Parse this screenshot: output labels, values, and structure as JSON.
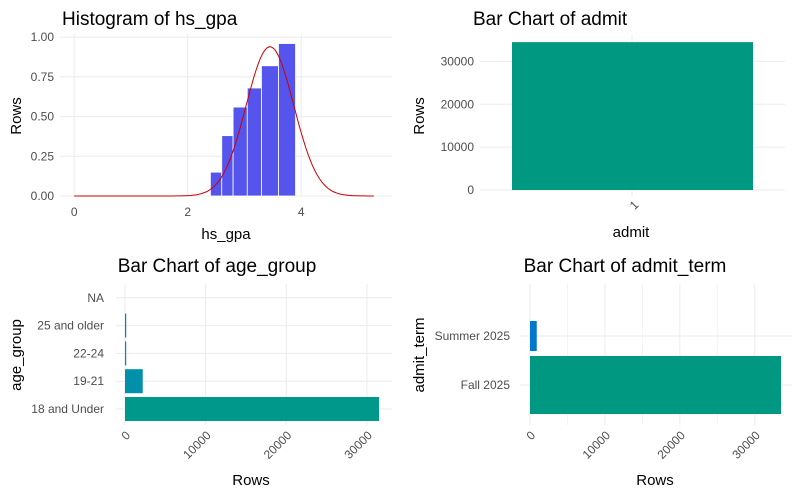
{
  "chart_data": [
    {
      "type": "bar",
      "variant": "histogram",
      "title": "Histogram of hs_gpa",
      "xlabel": "hs_gpa",
      "ylabel": "Rows",
      "xlim": [
        -0.25,
        5.6
      ],
      "ylim": [
        0,
        1.02
      ],
      "xticks": [
        0,
        2,
        4
      ],
      "yticks": [
        "0.00",
        "0.25",
        "0.50",
        "0.75",
        "1.00"
      ],
      "bins": [
        {
          "x0": 2.4,
          "x1": 2.6,
          "value": 0.15
        },
        {
          "x0": 2.6,
          "x1": 2.8,
          "value": 0.38
        },
        {
          "x0": 2.8,
          "x1": 3.05,
          "value": 0.56
        },
        {
          "x0": 3.05,
          "x1": 3.3,
          "value": 0.68
        },
        {
          "x0": 3.3,
          "x1": 3.6,
          "value": 0.82
        },
        {
          "x0": 3.6,
          "x1": 3.9,
          "value": 0.96
        }
      ],
      "density_curve": {
        "type": "line",
        "mean": 3.45,
        "sd": 0.42,
        "peak": 0.94,
        "color": "#CC0000"
      },
      "bar_color": "#5555EE",
      "grid": true
    },
    {
      "type": "bar",
      "title": "Bar Chart of admit",
      "xlabel": "admit",
      "ylabel": "Rows",
      "categories": [
        "1"
      ],
      "values": [
        34500
      ],
      "ylim": [
        0,
        35000
      ],
      "yticks": [
        "0",
        "10000",
        "20000",
        "30000"
      ],
      "bar_color": "#009880",
      "grid": true
    },
    {
      "type": "bar",
      "orientation": "horizontal",
      "title": "Bar Chart of age_group",
      "xlabel": "Rows",
      "ylabel": "age_group",
      "categories": [
        "18 and Under",
        "19-21",
        "22-24",
        "25 and older",
        "NA"
      ],
      "values": [
        31500,
        2200,
        150,
        150,
        0
      ],
      "bar_colors": [
        "#00988A",
        "#0090AA",
        "#0088B0",
        "#0080C0",
        "#0078D0"
      ],
      "xlim": [
        0,
        32500
      ],
      "xticks": [
        "0",
        "10000",
        "20000",
        "30000"
      ],
      "grid": true
    },
    {
      "type": "bar",
      "orientation": "horizontal",
      "title": "Bar Chart of admit_term",
      "xlabel": "Rows",
      "ylabel": "admit_term",
      "categories": [
        "Fall 2025",
        "Summer 2025"
      ],
      "values": [
        33500,
        900
      ],
      "bar_colors": [
        "#009880",
        "#0078D0"
      ],
      "xlim": [
        0,
        34700
      ],
      "xticks": [
        "0",
        "10000",
        "20000",
        "30000"
      ],
      "grid": true
    }
  ]
}
